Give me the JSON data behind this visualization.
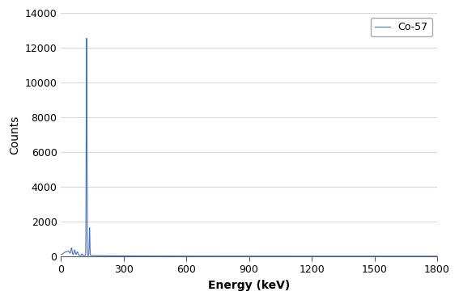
{
  "title": "",
  "xlabel": "Energy (keV)",
  "ylabel": "Counts",
  "xlim": [
    0,
    1800
  ],
  "ylim": [
    0,
    14000
  ],
  "xticks": [
    0,
    300,
    600,
    900,
    1200,
    1500,
    1800
  ],
  "yticks": [
    0,
    2000,
    4000,
    6000,
    8000,
    10000,
    12000,
    14000
  ],
  "legend_label": "Co-57",
  "line_color": "#4472C4",
  "background_color": "#ffffff",
  "grid_color": "#d9d9d9",
  "axis_color": "#595959",
  "font_size_ticks": 9,
  "font_size_label": 10,
  "font_size_legend": 9
}
